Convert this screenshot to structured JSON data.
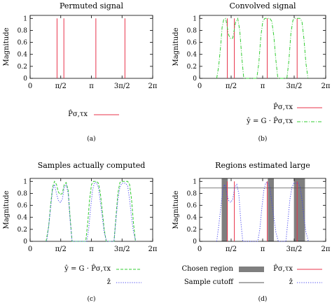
{
  "chart_data": [
    {
      "type": "line",
      "title": "Permuted signal",
      "ylabel": "Magnitude",
      "xlim": [
        0,
        6.2832
      ],
      "ylim": [
        0,
        1.05
      ],
      "x_ticks": [
        {
          "v": 0,
          "label": "0"
        },
        {
          "v": 1.5708,
          "label": "π/2"
        },
        {
          "v": 3.1416,
          "label": "π"
        },
        {
          "v": 4.7124,
          "label": "3π/2"
        },
        {
          "v": 6.2832,
          "label": "2π"
        }
      ],
      "y_ticks": [
        {
          "v": 0,
          "label": "0"
        },
        {
          "v": 0.2,
          "label": "0.2"
        },
        {
          "v": 0.4,
          "label": "0.4"
        },
        {
          "v": 0.6,
          "label": "0.6"
        },
        {
          "v": 0.8,
          "label": "0.8"
        },
        {
          "v": 1,
          "label": "1"
        }
      ],
      "caption": "(a)",
      "series": [
        {
          "name": "P̂σ,τx",
          "style": "spikes",
          "color": "#e8334a",
          "x": [
            1.38,
            1.73,
            3.37,
            4.86
          ],
          "y": [
            1,
            1,
            1,
            1
          ]
        }
      ]
    },
    {
      "type": "line",
      "title": "Convolved signal",
      "ylabel": "Magnitude",
      "xlim": [
        0,
        6.2832
      ],
      "ylim": [
        0,
        1.05
      ],
      "x_ticks": [
        {
          "v": 0,
          "label": "0"
        },
        {
          "v": 1.5708,
          "label": "π/2"
        },
        {
          "v": 3.1416,
          "label": "π"
        },
        {
          "v": 4.7124,
          "label": "3π/2"
        },
        {
          "v": 6.2832,
          "label": "2π"
        }
      ],
      "y_ticks": [
        {
          "v": 0,
          "label": "0"
        },
        {
          "v": 0.2,
          "label": "0.2"
        },
        {
          "v": 0.4,
          "label": "0.4"
        },
        {
          "v": 0.6,
          "label": "0.6"
        },
        {
          "v": 0.8,
          "label": "0.8"
        },
        {
          "v": 1,
          "label": "1"
        }
      ],
      "caption": "(b)",
      "series": [
        {
          "name": "P̂σ,τx",
          "style": "spikes",
          "color": "#e8334a",
          "x": [
            1.38,
            1.73,
            3.37,
            4.86
          ],
          "y": [
            1,
            1,
            1,
            1
          ]
        },
        {
          "name": "ŷ = G · P̂σ,τx",
          "style": "dash-dot",
          "color": "#33cc33",
          "x": [
            0.85,
            0.95,
            1.05,
            1.12,
            1.2,
            1.3,
            1.45,
            1.55,
            1.65,
            1.8,
            1.9,
            2.0,
            2.1,
            2.2,
            2.85,
            2.95,
            3.05,
            3.15,
            3.25,
            3.5,
            3.6,
            3.7,
            3.8,
            3.9,
            4.35,
            4.45,
            4.55,
            4.65,
            4.75,
            5.0,
            5.1,
            5.2,
            5.3,
            5.4
          ],
          "y": [
            0,
            0.2,
            0.55,
            0.85,
            0.98,
            1.0,
            0.72,
            0.66,
            0.67,
            0.95,
            1.0,
            0.8,
            0.35,
            0,
            0,
            0.25,
            0.7,
            0.95,
            1.0,
            1.0,
            0.95,
            0.7,
            0.3,
            0,
            0,
            0.3,
            0.75,
            0.97,
            1.0,
            1.0,
            0.95,
            0.65,
            0.25,
            0
          ]
        }
      ]
    },
    {
      "type": "line",
      "title": "Samples actually computed",
      "ylabel": "Magnitude",
      "xlim": [
        0,
        6.2832
      ],
      "ylim": [
        0,
        1.05
      ],
      "x_ticks": [
        {
          "v": 0,
          "label": "0"
        },
        {
          "v": 1.5708,
          "label": "π/2"
        },
        {
          "v": 3.1416,
          "label": "π"
        },
        {
          "v": 4.7124,
          "label": "3π/2"
        },
        {
          "v": 6.2832,
          "label": "2π"
        }
      ],
      "y_ticks": [
        {
          "v": 0,
          "label": "0"
        },
        {
          "v": 0.2,
          "label": "0.2"
        },
        {
          "v": 0.4,
          "label": "0.4"
        },
        {
          "v": 0.6,
          "label": "0.6"
        },
        {
          "v": 0.8,
          "label": "0.8"
        },
        {
          "v": 1,
          "label": "1"
        }
      ],
      "caption": "(c)",
      "series": [
        {
          "name": "ŷ = G · P̂σ,τx",
          "style": "dash",
          "color": "#33cc33",
          "x": [
            0.82,
            0.95,
            1.05,
            1.15,
            1.25,
            1.35,
            1.45,
            1.55,
            1.65,
            1.75,
            1.85,
            1.95,
            2.05,
            2.15,
            2.85,
            2.95,
            3.05,
            3.15,
            3.25,
            3.4,
            3.5,
            3.6,
            3.7,
            3.8,
            3.9,
            4.3,
            4.4,
            4.5,
            4.6,
            4.7,
            5.0,
            5.1,
            5.2,
            5.3,
            5.4
          ],
          "y": [
            0,
            0.25,
            0.6,
            0.9,
            1.0,
            0.95,
            0.82,
            0.78,
            0.8,
            0.95,
            0.98,
            0.85,
            0.4,
            0,
            0,
            0.3,
            0.7,
            0.95,
            1.0,
            1.0,
            0.97,
            0.8,
            0.5,
            0.2,
            0,
            0,
            0.4,
            0.8,
            0.98,
            1.0,
            1.0,
            0.95,
            0.7,
            0.3,
            0
          ]
        },
        {
          "name": "ẑ",
          "style": "dot",
          "color": "#4444ee",
          "x": [
            0.85,
            0.95,
            1.05,
            1.15,
            1.25,
            1.35,
            1.45,
            1.55,
            1.65,
            1.75,
            1.85,
            1.95,
            2.05,
            2.15,
            2.9,
            3.0,
            3.1,
            3.2,
            3.3,
            3.4,
            3.5,
            3.6,
            3.7,
            3.8,
            3.92,
            4.3,
            4.4,
            4.5,
            4.6,
            4.7,
            4.9,
            5.0,
            5.1,
            5.2,
            5.3,
            5.42
          ],
          "y": [
            0,
            0.25,
            0.55,
            0.85,
            0.95,
            0.8,
            0.68,
            0.65,
            0.7,
            0.9,
            0.95,
            0.8,
            0.35,
            0,
            0,
            0.2,
            0.55,
            0.85,
            0.98,
            0.98,
            0.9,
            0.65,
            0.4,
            0.15,
            0,
            0,
            0.35,
            0.7,
            0.9,
            0.97,
            0.97,
            0.92,
            0.7,
            0.4,
            0.15,
            0
          ]
        }
      ]
    },
    {
      "type": "line",
      "title": "Regions estimated large",
      "ylabel": "Magnitude",
      "xlim": [
        0,
        6.2832
      ],
      "ylim": [
        0,
        1.05
      ],
      "x_ticks": [
        {
          "v": 0,
          "label": "0"
        },
        {
          "v": 1.5708,
          "label": "π/2"
        },
        {
          "v": 3.1416,
          "label": "π"
        },
        {
          "v": 4.7124,
          "label": "3π/2"
        },
        {
          "v": 6.2832,
          "label": "2π"
        }
      ],
      "y_ticks": [
        {
          "v": 0,
          "label": "0"
        },
        {
          "v": 0.2,
          "label": "0.2"
        },
        {
          "v": 0.4,
          "label": "0.4"
        },
        {
          "v": 0.6,
          "label": "0.6"
        },
        {
          "v": 0.8,
          "label": "0.8"
        },
        {
          "v": 1,
          "label": "1"
        }
      ],
      "caption": "(d)",
      "chosen_regions": [
        [
          1.1,
          1.4
        ],
        [
          3.4,
          3.7
        ],
        [
          4.7,
          5.25
        ]
      ],
      "sample_cutoff": 0.89,
      "series": [
        {
          "name": "P̂σ,τx",
          "style": "spikes",
          "color": "#e8334a",
          "x": [
            1.38,
            1.73,
            3.37,
            4.86
          ],
          "y": [
            1,
            1,
            1,
            1
          ]
        },
        {
          "name": "ẑ",
          "style": "dot",
          "color": "#4444ee",
          "x": [
            0.85,
            0.95,
            1.05,
            1.15,
            1.25,
            1.35,
            1.45,
            1.55,
            1.65,
            1.75,
            1.85,
            1.95,
            2.05,
            2.15,
            2.9,
            3.0,
            3.1,
            3.2,
            3.3,
            3.4,
            3.5,
            3.6,
            3.7,
            3.8,
            3.92,
            4.3,
            4.4,
            4.5,
            4.6,
            4.7,
            4.9,
            5.0,
            5.1,
            5.2,
            5.3,
            5.42
          ],
          "y": [
            0,
            0.25,
            0.55,
            0.85,
            0.95,
            0.8,
            0.68,
            0.65,
            0.7,
            0.9,
            0.95,
            0.8,
            0.35,
            0,
            0,
            0.2,
            0.55,
            0.85,
            0.98,
            0.98,
            0.9,
            0.65,
            0.4,
            0.15,
            0,
            0,
            0.35,
            0.7,
            0.9,
            0.97,
            0.97,
            0.92,
            0.7,
            0.4,
            0.15,
            0
          ]
        }
      ],
      "legend_extra": [
        {
          "name": "Chosen region",
          "style": "box",
          "color": "#7f7f7f"
        },
        {
          "name": "Sample cutoff",
          "style": "line",
          "color": "#555555"
        }
      ]
    }
  ]
}
